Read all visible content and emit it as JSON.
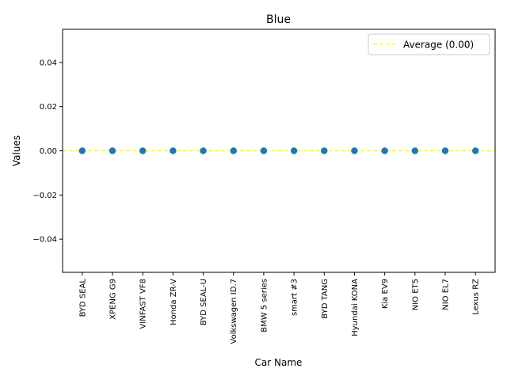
{
  "chart_data": {
    "type": "scatter",
    "title": "Blue",
    "xlabel": "Car Name",
    "ylabel": "Values",
    "categories": [
      "BYD SEAL",
      "XPENG G9",
      "VINFAST VF8",
      "Honda ZR-V",
      "BYD SEAL-U",
      "Volkswagen ID.7",
      "BMW 5 series",
      "smart #3",
      "BYD TANG",
      "Hyundai KONA",
      "Kia EV9",
      "NIO ET5",
      "NIO EL7",
      "Lexus RZ"
    ],
    "values": [
      0,
      0,
      0,
      0,
      0,
      0,
      0,
      0,
      0,
      0,
      0,
      0,
      0,
      0
    ],
    "ylim": [
      -0.055,
      0.055
    ],
    "yticks": [
      -0.04,
      -0.02,
      0.0,
      0.02,
      0.04
    ],
    "ytick_labels": [
      "−0.04",
      "−0.02",
      "0.00",
      "0.02",
      "0.04"
    ],
    "average": {
      "value": 0.0,
      "label": "Average (0.00)"
    },
    "legend_position": "upper right",
    "grid": false,
    "colors": {
      "points": "#1f77b4",
      "average_line": "#ffff00",
      "axes": "#000000"
    }
  }
}
